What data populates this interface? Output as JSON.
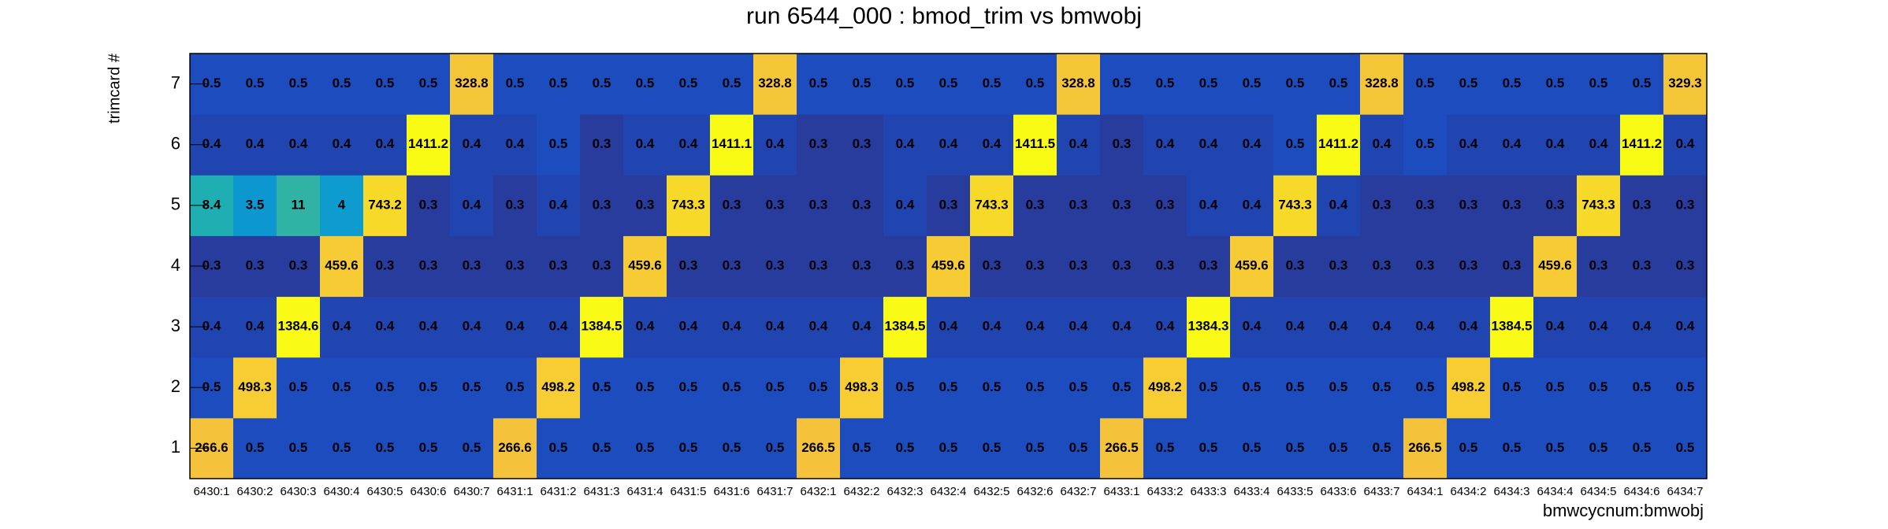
{
  "chart_data": {
    "type": "heatmap",
    "title": "run 6544_000 : bmod_trim vs bmwobj",
    "x_label": "bmwcycnum:bmwobj",
    "y_label": "trimcard #",
    "categories": [
      "6430:1",
      "6430:2",
      "6430:3",
      "6430:4",
      "6430:5",
      "6430:6",
      "6430:7",
      "6431:1",
      "6431:2",
      "6431:3",
      "6431:4",
      "6431:5",
      "6431:6",
      "6431:7",
      "6432:1",
      "6432:2",
      "6432:3",
      "6432:4",
      "6432:5",
      "6432:6",
      "6432:7",
      "6433:1",
      "6433:2",
      "6433:3",
      "6433:4",
      "6433:5",
      "6433:6",
      "6433:7",
      "6434:1",
      "6434:2",
      "6434:3",
      "6434:4",
      "6434:5",
      "6434:6",
      "6434:7"
    ],
    "y_categories": [
      1,
      2,
      3,
      4,
      5,
      6,
      7
    ],
    "values": [
      [
        266.6,
        0.5,
        0.5,
        0.5,
        0.5,
        0.5,
        0.5,
        266.6,
        0.5,
        0.5,
        0.5,
        0.5,
        0.5,
        0.5,
        266.5,
        0.5,
        0.5,
        0.5,
        0.5,
        0.5,
        0.5,
        266.5,
        0.5,
        0.5,
        0.5,
        0.5,
        0.5,
        0.5,
        266.5,
        0.5,
        0.5,
        0.5,
        0.5,
        0.5,
        0.5
      ],
      [
        0.5,
        498.3,
        0.5,
        0.5,
        0.5,
        0.5,
        0.5,
        0.5,
        498.2,
        0.5,
        0.5,
        0.5,
        0.5,
        0.5,
        0.5,
        498.3,
        0.5,
        0.5,
        0.5,
        0.5,
        0.5,
        0.5,
        498.2,
        0.5,
        0.5,
        0.5,
        0.5,
        0.5,
        0.5,
        498.2,
        0.5,
        0.5,
        0.5,
        0.5,
        0.5
      ],
      [
        0.4,
        0.4,
        1384.6,
        0.4,
        0.4,
        0.4,
        0.4,
        0.4,
        0.4,
        1384.5,
        0.4,
        0.4,
        0.4,
        0.4,
        0.4,
        0.4,
        1384.5,
        0.4,
        0.4,
        0.4,
        0.4,
        0.4,
        0.4,
        1384.3,
        0.4,
        0.4,
        0.4,
        0.4,
        0.4,
        0.4,
        1384.5,
        0.4,
        0.4,
        0.4,
        0.4
      ],
      [
        0.3,
        0.3,
        0.3,
        459.6,
        0.3,
        0.3,
        0.3,
        0.3,
        0.3,
        0.3,
        459.6,
        0.3,
        0.3,
        0.3,
        0.3,
        0.3,
        0.3,
        459.6,
        0.3,
        0.3,
        0.3,
        0.3,
        0.3,
        0.3,
        459.6,
        0.3,
        0.3,
        0.3,
        0.3,
        0.3,
        0.3,
        459.6,
        0.3,
        0.3,
        0.3
      ],
      [
        8.4,
        3.5,
        11.0,
        4.0,
        743.2,
        0.3,
        0.4,
        0.3,
        0.4,
        0.3,
        0.3,
        743.3,
        0.3,
        0.3,
        0.3,
        0.3,
        0.4,
        0.3,
        743.3,
        0.3,
        0.3,
        0.3,
        0.3,
        0.4,
        0.4,
        743.3,
        0.4,
        0.3,
        0.3,
        0.3,
        0.3,
        0.3,
        743.3,
        0.3,
        0.3
      ],
      [
        0.4,
        0.4,
        0.4,
        0.4,
        0.4,
        1411.2,
        0.4,
        0.4,
        0.5,
        0.3,
        0.4,
        0.4,
        1411.1,
        0.4,
        0.3,
        0.3,
        0.4,
        0.4,
        0.4,
        1411.5,
        0.4,
        0.3,
        0.4,
        0.4,
        0.4,
        0.5,
        1411.2,
        0.4,
        0.5,
        0.4,
        0.4,
        0.4,
        0.4,
        1411.2,
        0.4
      ],
      [
        0.5,
        0.5,
        0.5,
        0.5,
        0.5,
        0.5,
        328.8,
        0.5,
        0.5,
        0.5,
        0.5,
        0.5,
        0.5,
        328.8,
        0.5,
        0.5,
        0.5,
        0.5,
        0.5,
        0.5,
        328.8,
        0.5,
        0.5,
        0.5,
        0.5,
        0.5,
        0.5,
        328.8,
        0.5,
        0.5,
        0.5,
        0.5,
        0.5,
        0.5,
        329.3
      ]
    ],
    "zlog": true,
    "colormap": [
      "#283c9e",
      "#1456d2",
      "#0f78d8",
      "#0d9ad0",
      "#20b0b0",
      "#5cbc80",
      "#a8bd5c",
      "#e8bb48",
      "#f5c23c",
      "#f7d030",
      "#f9fb14"
    ]
  }
}
